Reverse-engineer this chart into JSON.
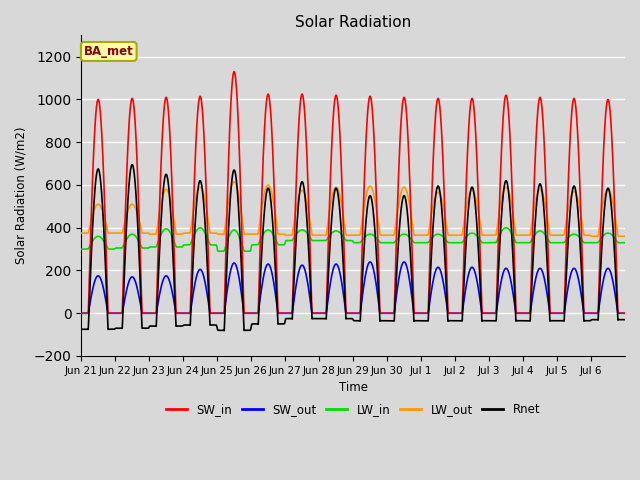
{
  "title": "Solar Radiation",
  "ylabel": "Solar Radiation (W/m2)",
  "xlabel": "Time",
  "ylim": [
    -200,
    1300
  ],
  "yticks": [
    -200,
    0,
    200,
    400,
    600,
    800,
    1000,
    1200
  ],
  "background_color": "#d8d8d8",
  "plot_bg_color": "#d8d8d8",
  "grid_color": "#ffffff",
  "station_label": "BA_met",
  "series": {
    "SW_in": {
      "color": "#ff0000",
      "lw": 1.2
    },
    "SW_out": {
      "color": "#0000ff",
      "lw": 1.2
    },
    "LW_in": {
      "color": "#00dd00",
      "lw": 1.2
    },
    "LW_out": {
      "color": "#ff9900",
      "lw": 1.2
    },
    "Rnet": {
      "color": "#000000",
      "lw": 1.2
    }
  },
  "n_days": 16,
  "x_tick_labels": [
    "Jun 21",
    "Jun 22",
    "Jun 23",
    "Jun 24",
    "Jun 25",
    "Jun 26",
    "Jun 27",
    "Jun 28",
    "Jun 29",
    "Jun 30",
    "Jul 1",
    "Jul 2",
    "Jul 3",
    "Jul 4",
    "Jul 5",
    "Jul 6"
  ],
  "x_tick_positions": [
    0,
    1,
    2,
    3,
    4,
    5,
    6,
    7,
    8,
    9,
    10,
    11,
    12,
    13,
    14,
    15
  ]
}
